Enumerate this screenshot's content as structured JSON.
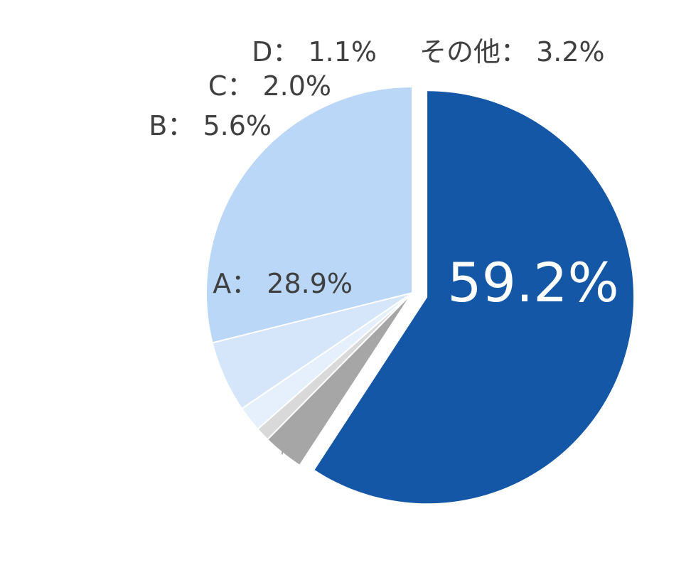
{
  "chart_data": {
    "type": "pie",
    "title": "",
    "legend": "none",
    "slices": [
      {
        "name": "",
        "value": 59.2,
        "label": "59.2%",
        "color": "#1357A6",
        "exploded": true
      },
      {
        "name": "その他",
        "value": 3.2,
        "label": "その他： 3.2%",
        "color": "#A6A6A6"
      },
      {
        "name": "D",
        "value": 1.1,
        "label": "D： 1.1%",
        "color": "#D9D9D9"
      },
      {
        "name": "C",
        "value": 2.0,
        "label": "C： 2.0%",
        "color": "#E6F0FC"
      },
      {
        "name": "B",
        "value": 5.6,
        "label": "B： 5.6%",
        "color": "#D5E6FA"
      },
      {
        "name": "A",
        "value": 28.9,
        "label": "A： 28.9%",
        "color": "#BAD7F7"
      }
    ]
  }
}
